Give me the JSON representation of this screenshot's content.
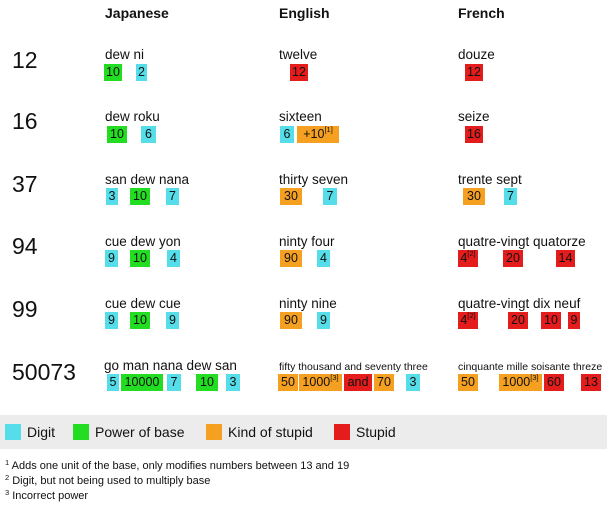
{
  "headers": {
    "japanese": "Japanese",
    "english": "English",
    "french": "French"
  },
  "rows": [
    {
      "number": "12",
      "japanese": {
        "words": "dew ni",
        "parts": [
          {
            "text": "10",
            "type": "power"
          },
          {
            "text": "2",
            "type": "digit"
          }
        ]
      },
      "english": {
        "words": "twelve",
        "parts": [
          {
            "text": "12",
            "type": "stupid"
          }
        ]
      },
      "french": {
        "words": "douze",
        "parts": [
          {
            "text": "12",
            "type": "stupid"
          }
        ]
      }
    },
    {
      "number": "16",
      "japanese": {
        "words": "dew roku",
        "parts": [
          {
            "text": "10",
            "type": "power"
          },
          {
            "text": "6",
            "type": "digit"
          }
        ]
      },
      "english": {
        "words": "sixteen",
        "parts": [
          {
            "text": "6",
            "type": "digit"
          },
          {
            "text": "+10",
            "sup": "[1]",
            "type": "kind"
          }
        ]
      },
      "french": {
        "words": "seize",
        "parts": [
          {
            "text": "16",
            "type": "stupid"
          }
        ]
      }
    },
    {
      "number": "37",
      "japanese": {
        "words": "san dew nana",
        "parts": [
          {
            "text": "3",
            "type": "digit"
          },
          {
            "text": "10",
            "type": "power"
          },
          {
            "text": "7",
            "type": "digit"
          }
        ]
      },
      "english": {
        "words": "thirty seven",
        "parts": [
          {
            "text": "30",
            "type": "kind"
          },
          {
            "text": "7",
            "type": "digit"
          }
        ]
      },
      "french": {
        "words": "trente sept",
        "parts": [
          {
            "text": "30",
            "type": "kind"
          },
          {
            "text": "7",
            "type": "digit"
          }
        ]
      }
    },
    {
      "number": "94",
      "japanese": {
        "words": "cue dew yon",
        "parts": [
          {
            "text": "9",
            "type": "digit"
          },
          {
            "text": "10",
            "type": "power"
          },
          {
            "text": "4",
            "type": "digit"
          }
        ]
      },
      "english": {
        "words": "ninty four",
        "parts": [
          {
            "text": "90",
            "type": "kind"
          },
          {
            "text": "4",
            "type": "digit"
          }
        ]
      },
      "french": {
        "words": "quatre-vingt quatorze",
        "parts": [
          {
            "text": "4",
            "sup": "[2]",
            "type": "stupid"
          },
          {
            "text": "20",
            "type": "stupid"
          },
          {
            "text": "14",
            "type": "stupid"
          }
        ]
      }
    },
    {
      "number": "99",
      "japanese": {
        "words": "cue dew cue",
        "parts": [
          {
            "text": "9",
            "type": "digit"
          },
          {
            "text": "10",
            "type": "power"
          },
          {
            "text": "9",
            "type": "digit"
          }
        ]
      },
      "english": {
        "words": "ninty nine",
        "parts": [
          {
            "text": "90",
            "type": "kind"
          },
          {
            "text": "9",
            "type": "digit"
          }
        ]
      },
      "french": {
        "words": "quatre-vingt dix neuf",
        "parts": [
          {
            "text": "4",
            "sup": "[2]",
            "type": "stupid"
          },
          {
            "text": "20",
            "type": "stupid"
          },
          {
            "text": "10",
            "type": "stupid"
          },
          {
            "text": "9",
            "type": "stupid"
          }
        ]
      }
    },
    {
      "number": "50073",
      "japanese": {
        "words": "go man nana dew san",
        "parts": [
          {
            "text": "5",
            "type": "digit"
          },
          {
            "text": "10000",
            "type": "power"
          },
          {
            "text": "7",
            "type": "digit"
          },
          {
            "text": "10",
            "type": "power"
          },
          {
            "text": "3",
            "type": "digit"
          }
        ]
      },
      "english": {
        "words": "fifty thousand and seventy three",
        "parts": [
          {
            "text": "50",
            "type": "kind"
          },
          {
            "text": "1000",
            "sup": "[3]",
            "type": "kind"
          },
          {
            "text": "and",
            "type": "stupid"
          },
          {
            "text": "70",
            "type": "kind"
          },
          {
            "text": "3",
            "type": "digit"
          }
        ]
      },
      "french": {
        "words": "cinquante mille soisante threze",
        "parts": [
          {
            "text": "50",
            "type": "kind"
          },
          {
            "text": "1000",
            "sup": "[3]",
            "type": "kind"
          },
          {
            "text": "60",
            "type": "stupid"
          },
          {
            "text": "13",
            "type": "stupid"
          }
        ]
      }
    }
  ],
  "legend": [
    {
      "label": "Digit",
      "color": "#55DDEA"
    },
    {
      "label": "Power of base",
      "color": "#22DD22"
    },
    {
      "label": "Kind of stupid",
      "color": "#F5A020"
    },
    {
      "label": "Stupid",
      "color": "#E51C1C"
    }
  ],
  "footnotes": [
    {
      "mark": "1",
      "text": "Adds one unit of the base, only modifies numbers between 13 and 19"
    },
    {
      "mark": "2",
      "text": "Digit, but not being used to multiply base"
    },
    {
      "mark": "3",
      "text": "Incorrect power"
    }
  ]
}
